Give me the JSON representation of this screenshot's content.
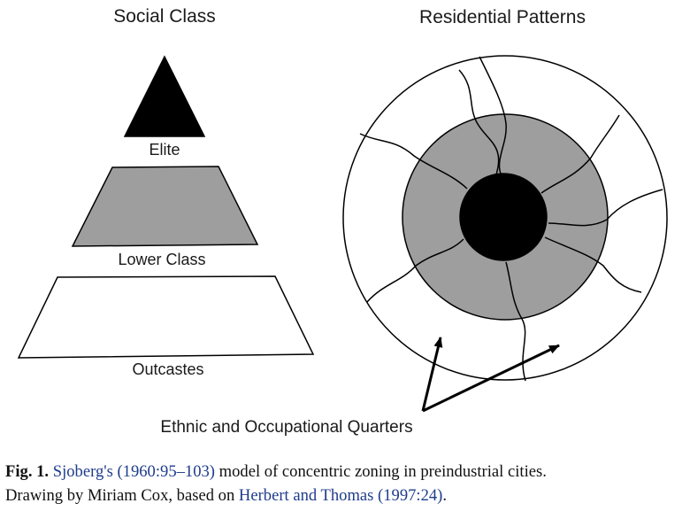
{
  "diagram": {
    "left_title": "Social Class",
    "right_title": "Residential Patterns",
    "class_labels": {
      "elite": "Elite",
      "lower": "Lower Class",
      "outcastes": "Outcastes"
    },
    "quarters_label": "Ethnic and Occupational Quarters",
    "colors": {
      "elite_fill": "#000000",
      "lower_fill": "#9e9e9e",
      "outcastes_fill": "#ffffff",
      "stroke": "#000000"
    }
  },
  "caption": {
    "fig_label": "Fig. 1.",
    "ref1": "Sjoberg's (1960:95–103)",
    "text1": "model of concentric zoning in preindustrial cities.",
    "text2": "Drawing by Miriam Cox, based on",
    "ref2": "Herbert and Thomas (1997:24)",
    "end": "."
  }
}
